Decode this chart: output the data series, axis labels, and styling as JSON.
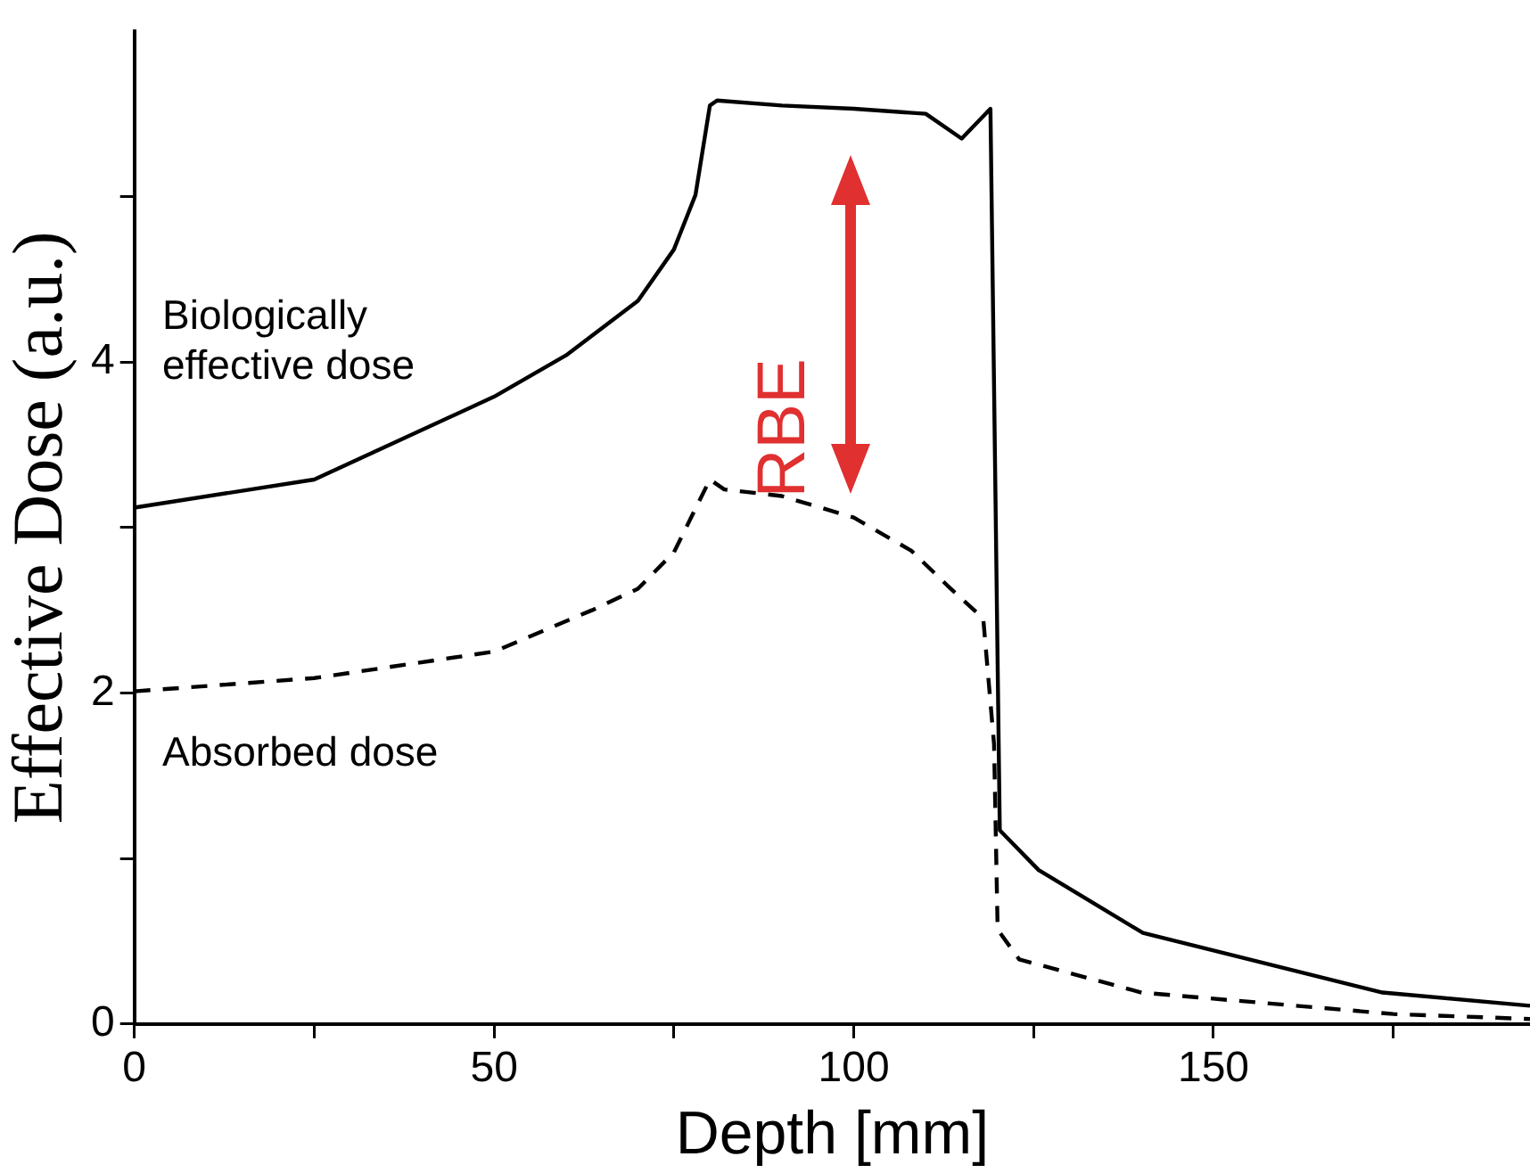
{
  "chart_data": {
    "type": "line",
    "xlabel": "Depth [mm]",
    "ylabel": "Effective Dose (a.u.)",
    "xlim": [
      0,
      194
    ],
    "xticks": [
      0,
      {
        "value": 25,
        "label": null
      },
      50,
      {
        "value": 75,
        "label": null
      },
      100,
      {
        "value": 125,
        "label": null
      },
      150,
      {
        "value": 175,
        "label": null
      }
    ],
    "ylim": [
      0,
      6
    ],
    "yticks": [
      0,
      {
        "value": 1,
        "label": null
      },
      2,
      {
        "value": 3,
        "label": null
      },
      4,
      {
        "value": 5,
        "label": null
      }
    ],
    "grid": false,
    "legend": false,
    "marker": "none",
    "series": [
      {
        "name": "Biologically effective dose",
        "color": "#000000",
        "line_style": "solid",
        "x": [
          0,
          25,
          50,
          60,
          70,
          75,
          78,
          80,
          81,
          90,
          100,
          110,
          115,
          119,
          120.3,
          125.7,
          140.2,
          173.5,
          194
        ],
        "values": [
          3.12,
          3.29,
          3.79,
          4.04,
          4.37,
          4.68,
          5.01,
          5.55,
          5.58,
          5.55,
          5.53,
          5.5,
          5.35,
          5.53,
          1.17,
          0.93,
          0.55,
          0.19,
          0.11
        ]
      },
      {
        "name": "Absorbed dose",
        "color": "#000000",
        "line_style": "dashed",
        "x": [
          0,
          25,
          50,
          63.6,
          70,
          75,
          80,
          82,
          90,
          100,
          108,
          113,
          118,
          119.5,
          120,
          123,
          140,
          175,
          194
        ],
        "values": [
          2.01,
          2.09,
          2.25,
          2.5,
          2.63,
          2.85,
          3.29,
          3.23,
          3.19,
          3.06,
          2.86,
          2.65,
          2.45,
          1.69,
          0.57,
          0.39,
          0.19,
          0.06,
          0.03
        ]
      }
    ],
    "annotations": [
      "RBE"
    ]
  }
}
